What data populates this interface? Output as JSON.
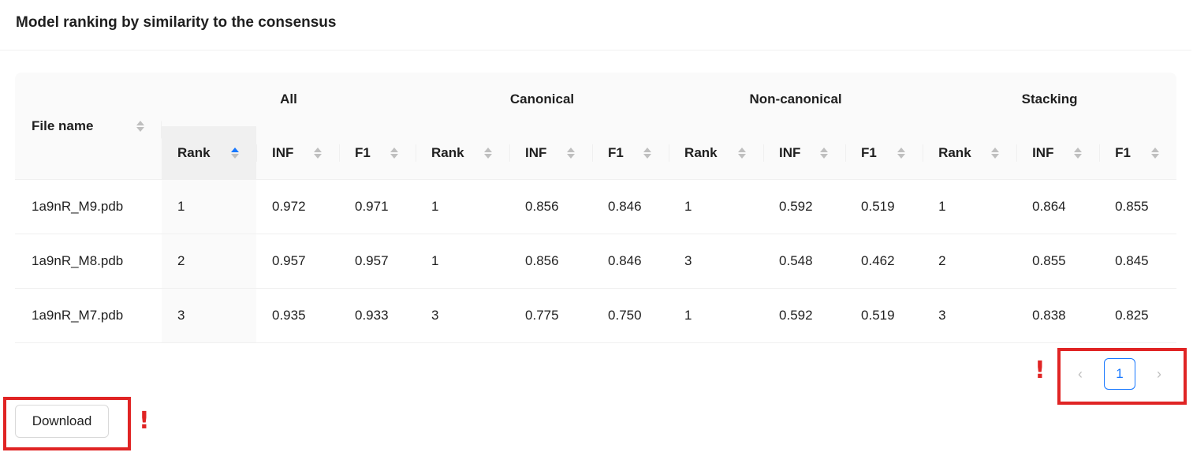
{
  "card": {
    "title": "Model ranking by similarity to the consensus"
  },
  "table": {
    "file_header": "File name",
    "groups": [
      "All",
      "Canonical",
      "Non-canonical",
      "Stacking"
    ],
    "sub_headers": [
      "Rank",
      "INF",
      "F1"
    ],
    "rows": [
      {
        "file": "1a9nR_M9.pdb",
        "values": [
          "1",
          "0.972",
          "0.971",
          "1",
          "0.856",
          "0.846",
          "1",
          "0.592",
          "0.519",
          "1",
          "0.864",
          "0.855"
        ]
      },
      {
        "file": "1a9nR_M8.pdb",
        "values": [
          "2",
          "0.957",
          "0.957",
          "1",
          "0.856",
          "0.846",
          "3",
          "0.548",
          "0.462",
          "2",
          "0.855",
          "0.845"
        ]
      },
      {
        "file": "1a9nR_M7.pdb",
        "values": [
          "3",
          "0.935",
          "0.933",
          "3",
          "0.775",
          "0.750",
          "1",
          "0.592",
          "0.519",
          "3",
          "0.838",
          "0.825"
        ]
      }
    ]
  },
  "pagination": {
    "current_page": "1",
    "prev_icon": "chevron-left-icon",
    "next_icon": "chevron-right-icon"
  },
  "download": {
    "label": "Download"
  },
  "annotations": {
    "warning_mark": "!",
    "highlight_color": "#e02424"
  },
  "colors": {
    "accent": "#1677ff",
    "header_bg": "#fafafa",
    "sorted_bg": "#f0f0f0"
  }
}
